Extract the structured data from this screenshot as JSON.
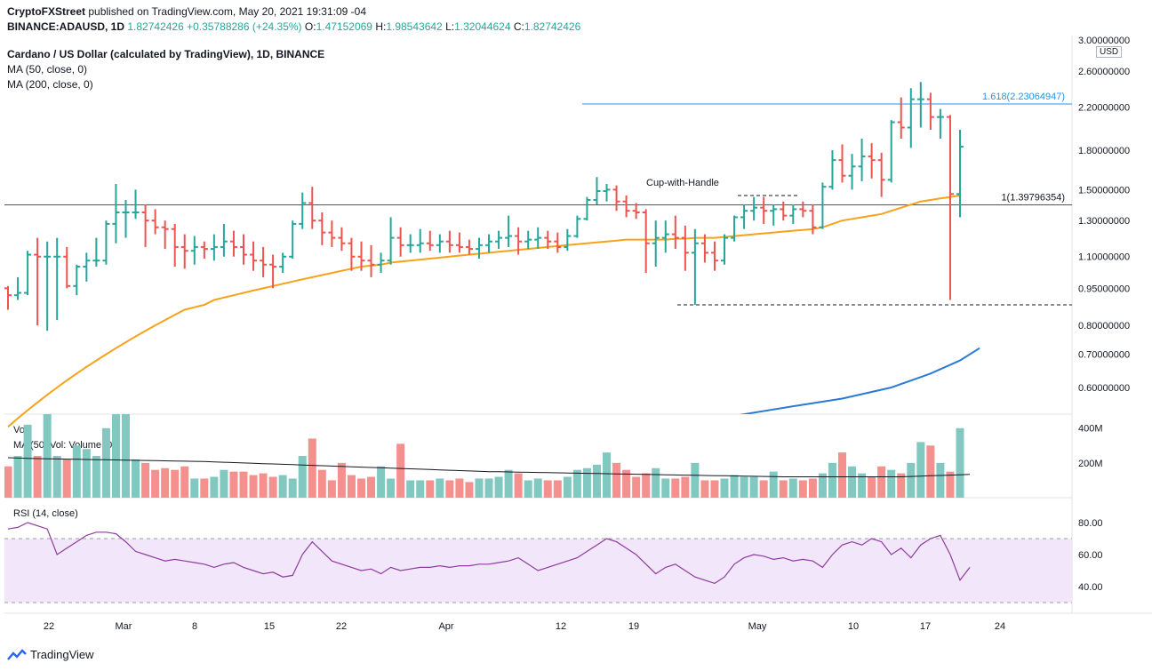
{
  "header": {
    "line1_publisher": "CryptoFXStreet",
    "line1_rest": "published on TradingView.com, May 20, 2021 19:31:09 -04",
    "symbol": "BINANCE:ADAUSD, 1D",
    "last": "1.82742426",
    "change": "+0.35788286 (+24.35%)",
    "o_label": "O:",
    "o_val": "1.47152069",
    "h_label": "H:",
    "h_val": "1.98543642",
    "l_label": "L:",
    "l_val": "1.32044624",
    "c_label": "C:",
    "c_val": "1.82742426",
    "title": "Cardano / US Dollar (calculated by TradingView), 1D, BINANCE",
    "ma50_legend": "MA (50, close, 0)",
    "ma200_legend": "MA (200, close, 0)"
  },
  "currency_label": "USD",
  "footer": {
    "brand": "TradingView"
  },
  "chart_data": {
    "type": "ohlc",
    "price_axis_ticks": [
      "3.00000000",
      "2.60000000",
      "2.20000000",
      "1.80000000",
      "1.50000000",
      "1.30000000",
      "1.10000000",
      "0.95000000",
      "0.80000000",
      "0.70000000",
      "0.60000000"
    ],
    "price_axis_values": [
      3.0,
      2.6,
      2.2,
      1.8,
      1.5,
      1.3,
      1.1,
      0.95,
      0.8,
      0.7,
      0.6
    ],
    "price_scale": "log",
    "x_axis_ticks": [
      "22",
      "Mar",
      "8",
      "15",
      "22",
      "Apr",
      "12",
      "19",
      "May",
      "10",
      "17",
      "24"
    ],
    "annotations": {
      "cup_with_handle": "Cup-with-Handle",
      "fib_1618": "1.618(2.23064947)",
      "fib_1": "1(1.39796354)",
      "fib_1618_value": 2.23064947,
      "fib_1_value": 1.39796354,
      "support_value": 0.88
    },
    "ohlc_bars": [
      [
        0.95,
        0.96,
        0.86,
        0.92
      ],
      [
        0.92,
        1.0,
        0.9,
        0.93
      ],
      [
        0.93,
        1.13,
        0.92,
        1.11
      ],
      [
        1.11,
        1.2,
        0.8,
        1.1
      ],
      [
        1.1,
        1.18,
        0.78,
        1.1
      ],
      [
        1.1,
        1.2,
        0.82,
        1.1
      ],
      [
        1.1,
        1.15,
        0.95,
        0.96
      ],
      [
        0.96,
        1.06,
        0.92,
        1.05
      ],
      [
        1.05,
        1.12,
        0.98,
        1.08
      ],
      [
        1.08,
        1.2,
        1.05,
        1.08
      ],
      [
        1.08,
        1.3,
        1.06,
        1.28
      ],
      [
        1.28,
        1.54,
        1.17,
        1.35
      ],
      [
        1.35,
        1.43,
        1.2,
        1.35
      ],
      [
        1.35,
        1.5,
        1.31,
        1.35
      ],
      [
        1.35,
        1.4,
        1.15,
        1.3
      ],
      [
        1.3,
        1.37,
        1.22,
        1.26
      ],
      [
        1.26,
        1.3,
        1.14,
        1.25
      ],
      [
        1.25,
        1.28,
        1.05,
        1.15
      ],
      [
        1.15,
        1.22,
        1.04,
        1.13
      ],
      [
        1.13,
        1.21,
        1.06,
        1.15
      ],
      [
        1.15,
        1.18,
        1.09,
        1.14
      ],
      [
        1.14,
        1.22,
        1.08,
        1.15
      ],
      [
        1.15,
        1.28,
        1.1,
        1.18
      ],
      [
        1.18,
        1.24,
        1.1,
        1.15
      ],
      [
        1.15,
        1.22,
        1.06,
        1.11
      ],
      [
        1.11,
        1.18,
        1.03,
        1.08
      ],
      [
        1.08,
        1.15,
        1.0,
        1.06
      ],
      [
        1.06,
        1.11,
        0.95,
        1.05
      ],
      [
        1.05,
        1.12,
        1.02,
        1.1
      ],
      [
        1.1,
        1.3,
        1.09,
        1.28
      ],
      [
        1.28,
        1.48,
        1.25,
        1.41
      ],
      [
        1.41,
        1.52,
        1.25,
        1.3
      ],
      [
        1.3,
        1.35,
        1.16,
        1.23
      ],
      [
        1.23,
        1.3,
        1.15,
        1.2
      ],
      [
        1.2,
        1.26,
        1.13,
        1.17
      ],
      [
        1.17,
        1.2,
        1.03,
        1.1
      ],
      [
        1.1,
        1.18,
        1.03,
        1.08
      ],
      [
        1.08,
        1.16,
        1.0,
        1.06
      ],
      [
        1.06,
        1.12,
        1.02,
        1.08
      ],
      [
        1.08,
        1.32,
        1.06,
        1.2
      ],
      [
        1.2,
        1.26,
        1.1,
        1.16
      ],
      [
        1.16,
        1.22,
        1.12,
        1.16
      ],
      [
        1.16,
        1.25,
        1.12,
        1.17
      ],
      [
        1.17,
        1.24,
        1.13,
        1.16
      ],
      [
        1.16,
        1.22,
        1.12,
        1.18
      ],
      [
        1.18,
        1.24,
        1.12,
        1.16
      ],
      [
        1.16,
        1.23,
        1.12,
        1.15
      ],
      [
        1.15,
        1.19,
        1.11,
        1.14
      ],
      [
        1.14,
        1.2,
        1.09,
        1.16
      ],
      [
        1.16,
        1.22,
        1.12,
        1.18
      ],
      [
        1.18,
        1.24,
        1.14,
        1.2
      ],
      [
        1.2,
        1.33,
        1.15,
        1.21
      ],
      [
        1.21,
        1.26,
        1.11,
        1.18
      ],
      [
        1.18,
        1.24,
        1.14,
        1.19
      ],
      [
        1.19,
        1.26,
        1.14,
        1.2
      ],
      [
        1.2,
        1.24,
        1.14,
        1.18
      ],
      [
        1.18,
        1.23,
        1.12,
        1.15
      ],
      [
        1.15,
        1.25,
        1.13,
        1.21
      ],
      [
        1.21,
        1.33,
        1.2,
        1.31
      ],
      [
        1.31,
        1.45,
        1.3,
        1.43
      ],
      [
        1.43,
        1.59,
        1.4,
        1.49
      ],
      [
        1.49,
        1.54,
        1.42,
        1.5
      ],
      [
        1.5,
        1.53,
        1.36,
        1.42
      ],
      [
        1.42,
        1.46,
        1.32,
        1.36
      ],
      [
        1.36,
        1.41,
        1.31,
        1.35
      ],
      [
        1.35,
        1.37,
        1.02,
        1.17
      ],
      [
        1.17,
        1.3,
        1.05,
        1.2
      ],
      [
        1.2,
        1.3,
        1.12,
        1.22
      ],
      [
        1.22,
        1.33,
        1.14,
        1.2
      ],
      [
        1.2,
        1.27,
        1.03,
        1.12
      ],
      [
        1.12,
        1.25,
        0.88,
        1.17
      ],
      [
        1.17,
        1.22,
        1.07,
        1.12
      ],
      [
        1.12,
        1.18,
        1.03,
        1.08
      ],
      [
        1.08,
        1.22,
        1.06,
        1.2
      ],
      [
        1.2,
        1.33,
        1.18,
        1.32
      ],
      [
        1.32,
        1.4,
        1.25,
        1.36
      ],
      [
        1.36,
        1.45,
        1.3,
        1.38
      ],
      [
        1.38,
        1.45,
        1.28,
        1.36
      ],
      [
        1.36,
        1.4,
        1.27,
        1.37
      ],
      [
        1.37,
        1.42,
        1.3,
        1.33
      ],
      [
        1.33,
        1.4,
        1.28,
        1.37
      ],
      [
        1.37,
        1.42,
        1.32,
        1.36
      ],
      [
        1.36,
        1.4,
        1.22,
        1.26
      ],
      [
        1.26,
        1.55,
        1.25,
        1.52
      ],
      [
        1.52,
        1.8,
        1.5,
        1.72
      ],
      [
        1.72,
        1.85,
        1.55,
        1.6
      ],
      [
        1.6,
        1.77,
        1.5,
        1.67
      ],
      [
        1.67,
        1.9,
        1.56,
        1.75
      ],
      [
        1.75,
        1.86,
        1.58,
        1.72
      ],
      [
        1.72,
        1.78,
        1.45,
        1.57
      ],
      [
        1.57,
        2.07,
        1.55,
        2.05
      ],
      [
        2.05,
        2.3,
        1.9,
        2.0
      ],
      [
        2.0,
        2.4,
        1.82,
        2.28
      ],
      [
        2.28,
        2.47,
        2.0,
        2.28
      ],
      [
        2.28,
        2.35,
        1.98,
        2.1
      ],
      [
        2.1,
        2.18,
        1.9,
        2.1
      ],
      [
        2.1,
        2.12,
        0.9,
        1.47
      ],
      [
        1.47,
        1.98,
        1.32,
        1.83
      ]
    ],
    "ma50": [
      0.5,
      0.52,
      0.54,
      0.56,
      0.58,
      0.6,
      0.62,
      0.64,
      0.66,
      0.68,
      0.7,
      0.72,
      0.74,
      0.76,
      0.78,
      0.8,
      0.82,
      0.84,
      0.86,
      0.87,
      0.88,
      0.9,
      0.91,
      0.92,
      0.93,
      0.94,
      0.95,
      0.96,
      0.97,
      0.98,
      0.99,
      1.0,
      1.01,
      1.02,
      1.03,
      1.04,
      1.05,
      1.055,
      1.06,
      1.07,
      1.075,
      1.08,
      1.085,
      1.09,
      1.095,
      1.1,
      1.105,
      1.11,
      1.115,
      1.12,
      1.125,
      1.13,
      1.135,
      1.14,
      1.145,
      1.15,
      1.155,
      1.16,
      1.165,
      1.17,
      1.175,
      1.18,
      1.185,
      1.19,
      1.19,
      1.19,
      1.19,
      1.19,
      1.195,
      1.195,
      1.2,
      1.2,
      1.2,
      1.205,
      1.21,
      1.215,
      1.22,
      1.225,
      1.23,
      1.235,
      1.24,
      1.245,
      1.25,
      1.26,
      1.28,
      1.3,
      1.31,
      1.32,
      1.33,
      1.34,
      1.36,
      1.38,
      1.4,
      1.42,
      1.43,
      1.44,
      1.45,
      1.46
    ],
    "ma200_visible": [
      [
        66,
        0.5
      ],
      [
        70,
        0.51
      ],
      [
        75,
        0.53
      ],
      [
        80,
        0.55
      ],
      [
        85,
        0.57
      ],
      [
        90,
        0.6
      ],
      [
        94,
        0.64
      ],
      [
        97,
        0.68
      ],
      [
        99,
        0.72
      ]
    ],
    "volume_axis": [
      "400M",
      "200M"
    ],
    "volume_max_M": 460,
    "volumes_M": [
      180,
      240,
      420,
      240,
      500,
      240,
      220,
      300,
      280,
      240,
      400,
      580,
      600,
      220,
      200,
      160,
      170,
      160,
      180,
      110,
      110,
      120,
      160,
      150,
      150,
      130,
      140,
      120,
      130,
      110,
      240,
      340,
      160,
      100,
      200,
      130,
      110,
      120,
      180,
      110,
      310,
      100,
      100,
      100,
      110,
      100,
      110,
      90,
      110,
      110,
      120,
      160,
      140,
      100,
      110,
      100,
      100,
      120,
      160,
      170,
      190,
      260,
      200,
      160,
      120,
      140,
      170,
      110,
      110,
      120,
      200,
      100,
      100,
      110,
      130,
      120,
      120,
      100,
      150,
      100,
      110,
      100,
      110,
      140,
      200,
      260,
      180,
      140,
      120,
      180,
      160,
      140,
      200,
      320,
      300,
      200,
      150,
      400,
      200
    ],
    "volume_ma50_M": [
      230,
      228,
      226,
      225,
      224,
      223,
      222,
      221,
      220,
      219,
      218,
      217,
      216,
      215,
      214,
      213,
      212,
      211,
      210,
      209,
      208,
      206,
      204,
      202,
      200,
      198,
      196,
      194,
      192,
      190,
      188,
      186,
      184,
      182,
      180,
      178,
      176,
      174,
      172,
      170,
      168,
      166,
      164,
      162,
      160,
      158,
      156,
      154,
      152,
      150,
      149,
      148,
      147,
      146,
      145,
      144,
      143,
      142,
      141,
      140,
      139,
      138,
      137,
      136,
      135,
      134,
      133,
      132,
      131,
      130,
      129,
      128,
      127,
      126,
      125,
      124,
      123,
      122,
      121,
      120,
      120,
      120,
      120,
      120,
      120,
      120,
      120,
      120,
      120,
      120,
      120,
      120,
      122,
      124,
      126,
      128,
      130,
      132,
      134
    ],
    "rsi_axis": [
      "80.00",
      "60.00",
      "40.00"
    ],
    "rsi_levels": [
      70,
      30
    ],
    "rsi": [
      76,
      77,
      80,
      78,
      76,
      60,
      64,
      68,
      72,
      74,
      74,
      73,
      68,
      62,
      60,
      58,
      56,
      57,
      56,
      55,
      54,
      52,
      54,
      55,
      52,
      50,
      48,
      49,
      46,
      47,
      60,
      68,
      62,
      56,
      54,
      52,
      50,
      51,
      48,
      52,
      50,
      51,
      52,
      52,
      53,
      52,
      53,
      53,
      54,
      54,
      55,
      56,
      58,
      54,
      50,
      52,
      54,
      56,
      58,
      62,
      66,
      70,
      68,
      64,
      60,
      54,
      48,
      52,
      54,
      50,
      46,
      44,
      42,
      46,
      54,
      58,
      60,
      59,
      57,
      58,
      56,
      57,
      56,
      52,
      60,
      66,
      68,
      66,
      70,
      68,
      60,
      64,
      58,
      66,
      70,
      72,
      60,
      44,
      52
    ]
  }
}
